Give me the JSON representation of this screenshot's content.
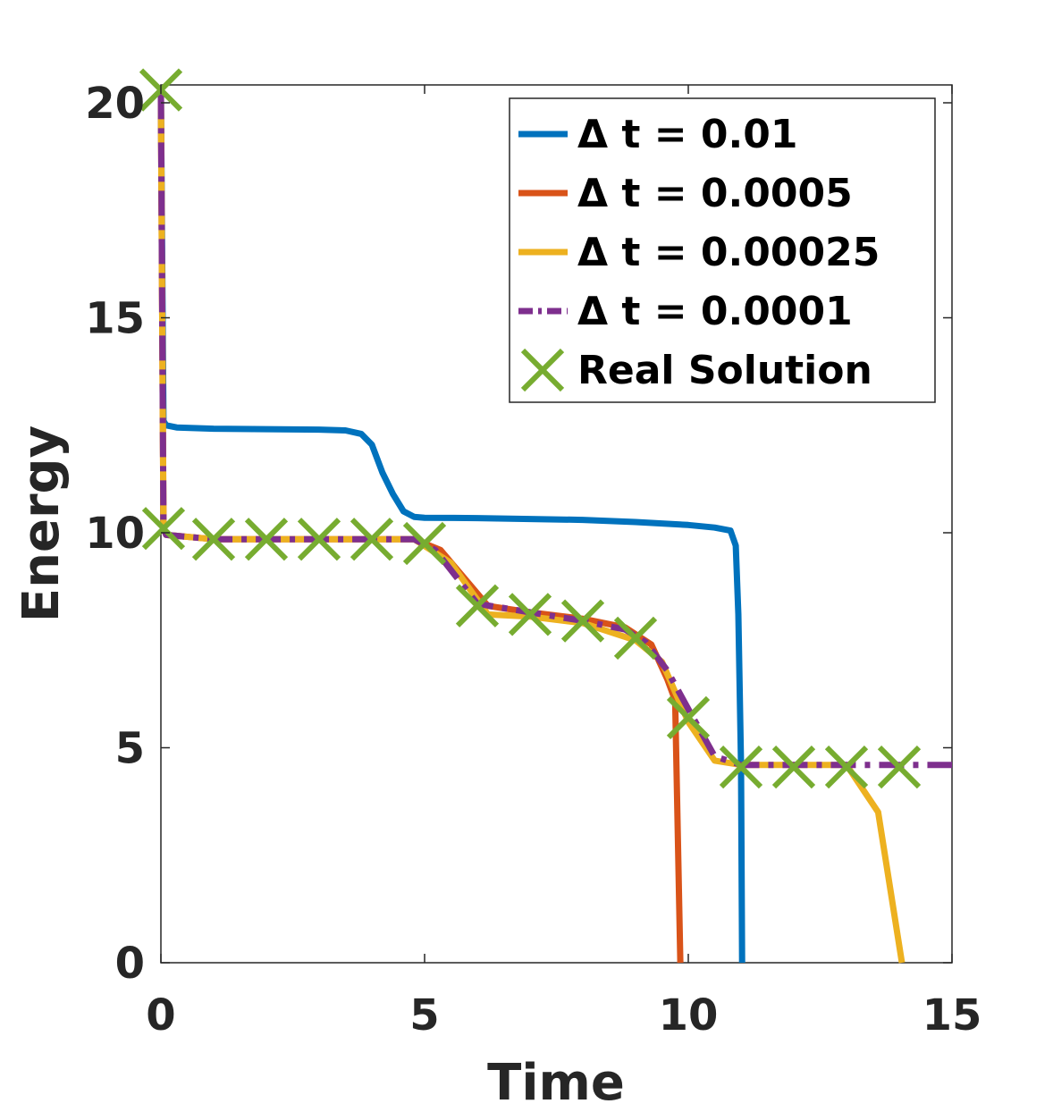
{
  "chart_data": {
    "type": "line",
    "title": "",
    "xlabel": "Time",
    "ylabel": "Energy",
    "xlim": [
      0,
      15
    ],
    "ylim": [
      0,
      20.5
    ],
    "xticks": [
      0,
      5,
      10,
      15
    ],
    "yticks": [
      0,
      5,
      10,
      15,
      20
    ],
    "xtick_labels": [
      "0",
      "5",
      "10",
      "15"
    ],
    "ytick_labels": [
      "0",
      "5",
      "10",
      "15",
      "20"
    ],
    "grid": false,
    "legend_position": "top-right",
    "series": [
      {
        "name": "Δ t = 0.01",
        "color": "#0072BD",
        "style": "solid",
        "marker": "none",
        "x": [
          0,
          0.05,
          0.1,
          0.3,
          1,
          2,
          3,
          3.5,
          3.8,
          4.0,
          4.2,
          4.4,
          4.6,
          4.8,
          5.0,
          6,
          7,
          8,
          9,
          10,
          10.5,
          10.8,
          10.9,
          10.95,
          11.0,
          11.02
        ],
        "y": [
          20.2,
          12.6,
          12.5,
          12.45,
          12.42,
          12.41,
          12.4,
          12.38,
          12.3,
          12.05,
          11.4,
          10.9,
          10.5,
          10.37,
          10.35,
          10.34,
          10.32,
          10.3,
          10.25,
          10.18,
          10.12,
          10.05,
          9.7,
          8.1,
          4.6,
          0
        ]
      },
      {
        "name": "Δ t = 0.0005",
        "color": "#D95319",
        "style": "solid",
        "marker": "none",
        "x": [
          0,
          0.05,
          0.1,
          1,
          2,
          3,
          4,
          4.8,
          5.3,
          6.2,
          7,
          8,
          8.8,
          9.3,
          9.6,
          9.75,
          9.85
        ],
        "y": [
          20.2,
          10.1,
          9.95,
          9.85,
          9.85,
          9.85,
          9.85,
          9.85,
          9.6,
          8.3,
          8.15,
          8.0,
          7.8,
          7.4,
          6.6,
          6.1,
          0
        ]
      },
      {
        "name": "Δ t = 0.00025",
        "color": "#EDB120",
        "style": "solid",
        "marker": "none",
        "x": [
          0,
          0.05,
          0.1,
          1,
          2,
          3,
          4,
          4.8,
          5.5,
          6.2,
          7,
          8,
          9,
          9.5,
          10,
          10.5,
          11,
          12,
          13,
          13.6,
          14.05
        ],
        "y": [
          20.2,
          10.1,
          9.95,
          9.85,
          9.85,
          9.85,
          9.85,
          9.85,
          9.3,
          8.1,
          8.05,
          7.9,
          7.5,
          7.0,
          5.6,
          4.7,
          4.6,
          4.6,
          4.6,
          3.5,
          0
        ]
      },
      {
        "name": "Δ t = 0.0001",
        "color": "#7E2F8E",
        "style": "dash-dot",
        "marker": "none",
        "x": [
          0,
          0.05,
          0.1,
          1,
          2,
          3,
          4,
          4.8,
          5.2,
          6.0,
          7,
          8,
          8.8,
          9.2,
          9.6,
          10.0,
          10.5,
          11,
          12,
          13,
          14,
          15
        ],
        "y": [
          20.2,
          10.1,
          9.95,
          9.85,
          9.85,
          9.85,
          9.85,
          9.85,
          9.6,
          8.35,
          8.15,
          7.95,
          7.75,
          7.45,
          6.8,
          5.9,
          4.8,
          4.6,
          4.6,
          4.6,
          4.6,
          4.6
        ]
      },
      {
        "name": "Real Solution",
        "color": "#77AC30",
        "style": "none",
        "marker": "x",
        "x": [
          0,
          0.05,
          1,
          2,
          3,
          4,
          5,
          6,
          7,
          8,
          9,
          10,
          11,
          12,
          13,
          14
        ],
        "y": [
          20.3,
          10.1,
          9.85,
          9.85,
          9.85,
          9.85,
          9.75,
          8.3,
          8.1,
          7.95,
          7.55,
          5.7,
          4.55,
          4.55,
          4.55,
          4.55
        ]
      }
    ]
  }
}
